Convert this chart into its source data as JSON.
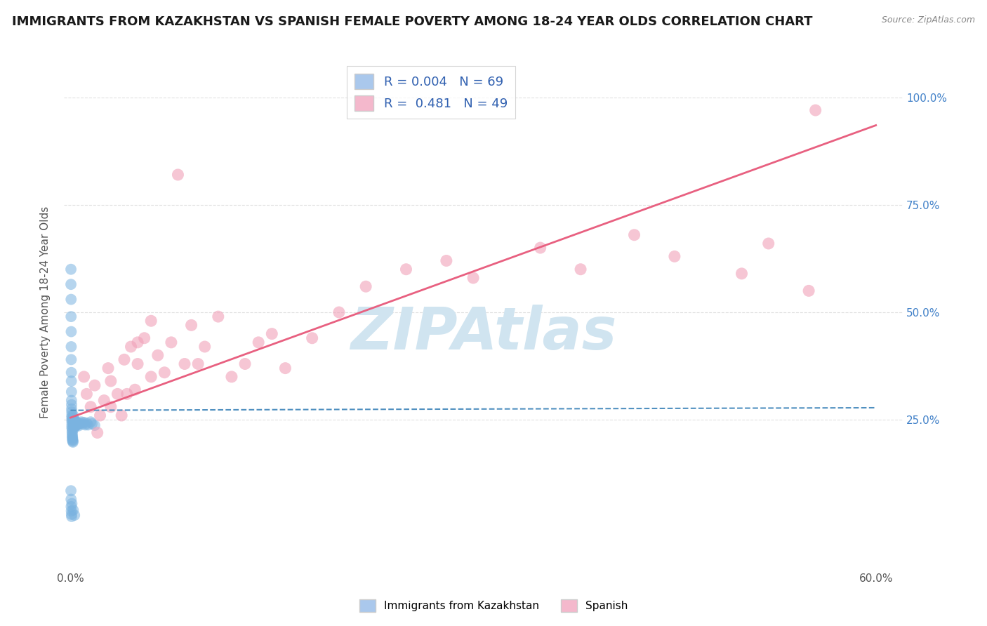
{
  "title": "IMMIGRANTS FROM KAZAKHSTAN VS SPANISH FEMALE POVERTY AMONG 18-24 YEAR OLDS CORRELATION CHART",
  "source": "Source: ZipAtlas.com",
  "ylabel_left": "Female Poverty Among 18-24 Year Olds",
  "y_tick_vals": [
    0.0,
    0.25,
    0.5,
    0.75,
    1.0
  ],
  "y_tick_labels": [
    "",
    "25.0%",
    "50.0%",
    "75.0%",
    "100.0%"
  ],
  "x_tick_vals": [
    0.0,
    0.6
  ],
  "x_tick_labels": [
    "0.0%",
    "60.0%"
  ],
  "x_lim": [
    -0.005,
    0.62
  ],
  "y_lim": [
    -0.1,
    1.1
  ],
  "watermark": "ZIPAtlas",
  "blue_color": "#7ab3e0",
  "pink_color": "#f0a0b8",
  "blue_line_color": "#5090c0",
  "pink_line_color": "#e86080",
  "background_color": "#ffffff",
  "grid_color": "#e0e0e0",
  "title_fontsize": 13,
  "axis_label_fontsize": 11,
  "tick_fontsize": 11,
  "watermark_color": "#d0e4f0",
  "watermark_fontsize": 60,
  "legend_label_1": "R = 0.004   N = 69",
  "legend_label_2": "R =  0.481   N = 49",
  "legend_color_1": "#aac8ec",
  "legend_color_2": "#f4b8cc",
  "bottom_legend_label_1": "Immigrants from Kazakhstan",
  "bottom_legend_label_2": "Spanish",
  "blue_scatter_x": [
    0.0003,
    0.0003,
    0.0004,
    0.0004,
    0.0005,
    0.0005,
    0.0005,
    0.0006,
    0.0006,
    0.0007,
    0.0007,
    0.0008,
    0.0008,
    0.0009,
    0.0009,
    0.001,
    0.001,
    0.001,
    0.001,
    0.001,
    0.0012,
    0.0012,
    0.0013,
    0.0013,
    0.0014,
    0.0015,
    0.0015,
    0.0016,
    0.0017,
    0.0018,
    0.002,
    0.002,
    0.002,
    0.002,
    0.0022,
    0.0023,
    0.0025,
    0.0025,
    0.003,
    0.003,
    0.003,
    0.0032,
    0.0035,
    0.004,
    0.004,
    0.0045,
    0.005,
    0.005,
    0.006,
    0.006,
    0.007,
    0.008,
    0.009,
    0.01,
    0.011,
    0.012,
    0.013,
    0.015,
    0.016,
    0.018,
    0.0003,
    0.0004,
    0.0005,
    0.0006,
    0.0007,
    0.0008,
    0.001,
    0.002,
    0.003
  ],
  "blue_scatter_y": [
    0.6,
    0.565,
    0.53,
    0.49,
    0.455,
    0.42,
    0.39,
    0.36,
    0.34,
    0.315,
    0.295,
    0.285,
    0.275,
    0.268,
    0.26,
    0.255,
    0.25,
    0.245,
    0.238,
    0.232,
    0.228,
    0.222,
    0.218,
    0.213,
    0.21,
    0.207,
    0.204,
    0.202,
    0.2,
    0.198,
    0.26,
    0.255,
    0.25,
    0.245,
    0.24,
    0.237,
    0.234,
    0.23,
    0.25,
    0.246,
    0.242,
    0.238,
    0.235,
    0.245,
    0.241,
    0.237,
    0.243,
    0.239,
    0.24,
    0.236,
    0.242,
    0.245,
    0.24,
    0.244,
    0.238,
    0.242,
    0.238,
    0.245,
    0.241,
    0.237,
    0.085,
    0.065,
    0.048,
    0.038,
    0.03,
    0.025,
    0.055,
    0.04,
    0.028
  ],
  "pink_scatter_x": [
    0.01,
    0.012,
    0.015,
    0.018,
    0.02,
    0.022,
    0.025,
    0.028,
    0.03,
    0.03,
    0.035,
    0.038,
    0.04,
    0.042,
    0.045,
    0.048,
    0.05,
    0.05,
    0.055,
    0.06,
    0.06,
    0.065,
    0.07,
    0.075,
    0.08,
    0.085,
    0.09,
    0.095,
    0.1,
    0.11,
    0.12,
    0.13,
    0.14,
    0.15,
    0.16,
    0.18,
    0.2,
    0.22,
    0.25,
    0.28,
    0.3,
    0.35,
    0.38,
    0.42,
    0.45,
    0.5,
    0.52,
    0.55,
    0.555
  ],
  "pink_scatter_y": [
    0.35,
    0.31,
    0.28,
    0.33,
    0.22,
    0.26,
    0.295,
    0.37,
    0.34,
    0.28,
    0.31,
    0.26,
    0.39,
    0.31,
    0.42,
    0.32,
    0.38,
    0.43,
    0.44,
    0.35,
    0.48,
    0.4,
    0.36,
    0.43,
    0.82,
    0.38,
    0.47,
    0.38,
    0.42,
    0.49,
    0.35,
    0.38,
    0.43,
    0.45,
    0.37,
    0.44,
    0.5,
    0.56,
    0.6,
    0.62,
    0.58,
    0.65,
    0.6,
    0.68,
    0.63,
    0.59,
    0.66,
    0.55,
    0.97
  ],
  "pink_line_x0": 0.0,
  "pink_line_y0": 0.255,
  "pink_line_x1": 0.6,
  "pink_line_y1": 0.935,
  "blue_line_x0": 0.0,
  "blue_line_y0": 0.272,
  "blue_line_x1": 0.6,
  "blue_line_y1": 0.278
}
